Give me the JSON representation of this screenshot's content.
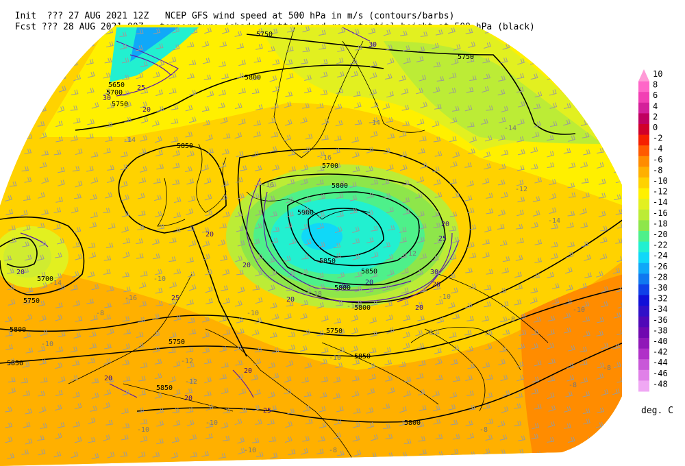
{
  "header": {
    "line1_left": "Init  ??? 27 AUG 2021 12Z",
    "line1_right": "NCEP GFS wind speed at 500 hPa in m/s (contours/barbs)",
    "line2_left": "Fcst ??? 28 AUG 2021 00Z",
    "line2_right": "temperature (shaded/dotted) and geopotential height at 500 hPa (black)"
  },
  "colorbar": {
    "units": "deg. C",
    "levels": [
      {
        "label": "10",
        "color": "#ff9ad6"
      },
      {
        "label": "8",
        "color": "#ff66c8"
      },
      {
        "label": "6",
        "color": "#f23fb4"
      },
      {
        "label": "4",
        "color": "#d4209a"
      },
      {
        "label": "2",
        "color": "#c00060"
      },
      {
        "label": "0",
        "color": "#d0002a"
      },
      {
        "label": "-2",
        "color": "#f52000"
      },
      {
        "label": "-4",
        "color": "#ff5a00"
      },
      {
        "label": "-6",
        "color": "#ff8c00"
      },
      {
        "label": "-8",
        "color": "#ffb000"
      },
      {
        "label": "-10",
        "color": "#ffd200"
      },
      {
        "label": "-12",
        "color": "#fff000"
      },
      {
        "label": "-14",
        "color": "#e2f020"
      },
      {
        "label": "-16",
        "color": "#bcec36"
      },
      {
        "label": "-18",
        "color": "#8ee64a"
      },
      {
        "label": "-20",
        "color": "#4ef08a"
      },
      {
        "label": "-22",
        "color": "#22f0d0"
      },
      {
        "label": "-24",
        "color": "#10d8f8"
      },
      {
        "label": "-26",
        "color": "#10a8f8"
      },
      {
        "label": "-28",
        "color": "#1078f0"
      },
      {
        "label": "-30",
        "color": "#1040e8"
      },
      {
        "label": "-32",
        "color": "#1010d8"
      },
      {
        "label": "-34",
        "color": "#3010c8"
      },
      {
        "label": "-36",
        "color": "#5008b8"
      },
      {
        "label": "-38",
        "color": "#7008b0"
      },
      {
        "label": "-40",
        "color": "#9018b8"
      },
      {
        "label": "-42",
        "color": "#b030c8"
      },
      {
        "label": "-44",
        "color": "#c858d8"
      },
      {
        "label": "-46",
        "color": "#e080e8"
      },
      {
        "label": "-48",
        "color": "#f0a8f4"
      }
    ]
  },
  "map_labels": {
    "geopotential": [
      "5750",
      "5750",
      "5800",
      "5650",
      "5700",
      "5750",
      "5850",
      "5750",
      "5700",
      "5800",
      "5900",
      "5850",
      "5800",
      "5750",
      "5700",
      "5750",
      "5850",
      "5800",
      "5850",
      "5800",
      "5850",
      "5800",
      "5850"
    ],
    "wind": [
      "30",
      "25",
      "20",
      "30",
      "20",
      "20",
      "20",
      "25",
      "20",
      "20",
      "30",
      "25",
      "20",
      "20",
      "20",
      "25",
      "20",
      "20",
      "20",
      "20"
    ],
    "temperature": [
      "-14",
      "-14",
      "-14",
      "-12",
      "-16",
      "-16",
      "-18",
      "-14",
      "-14",
      "-12",
      "-10",
      "-16",
      "-18",
      "-12",
      "-10",
      "-10",
      "-10",
      "-8",
      "-10",
      "-10",
      "-8",
      "-8",
      "-8",
      "-8",
      "-10",
      "-12",
      "-8",
      "-10",
      "-10",
      "-10",
      "-8"
    ]
  },
  "colors": {
    "height_contour": "#000000",
    "wind_contour": "#5a1aa8",
    "barb": "#9a9a9a",
    "coastline": "#000000"
  }
}
